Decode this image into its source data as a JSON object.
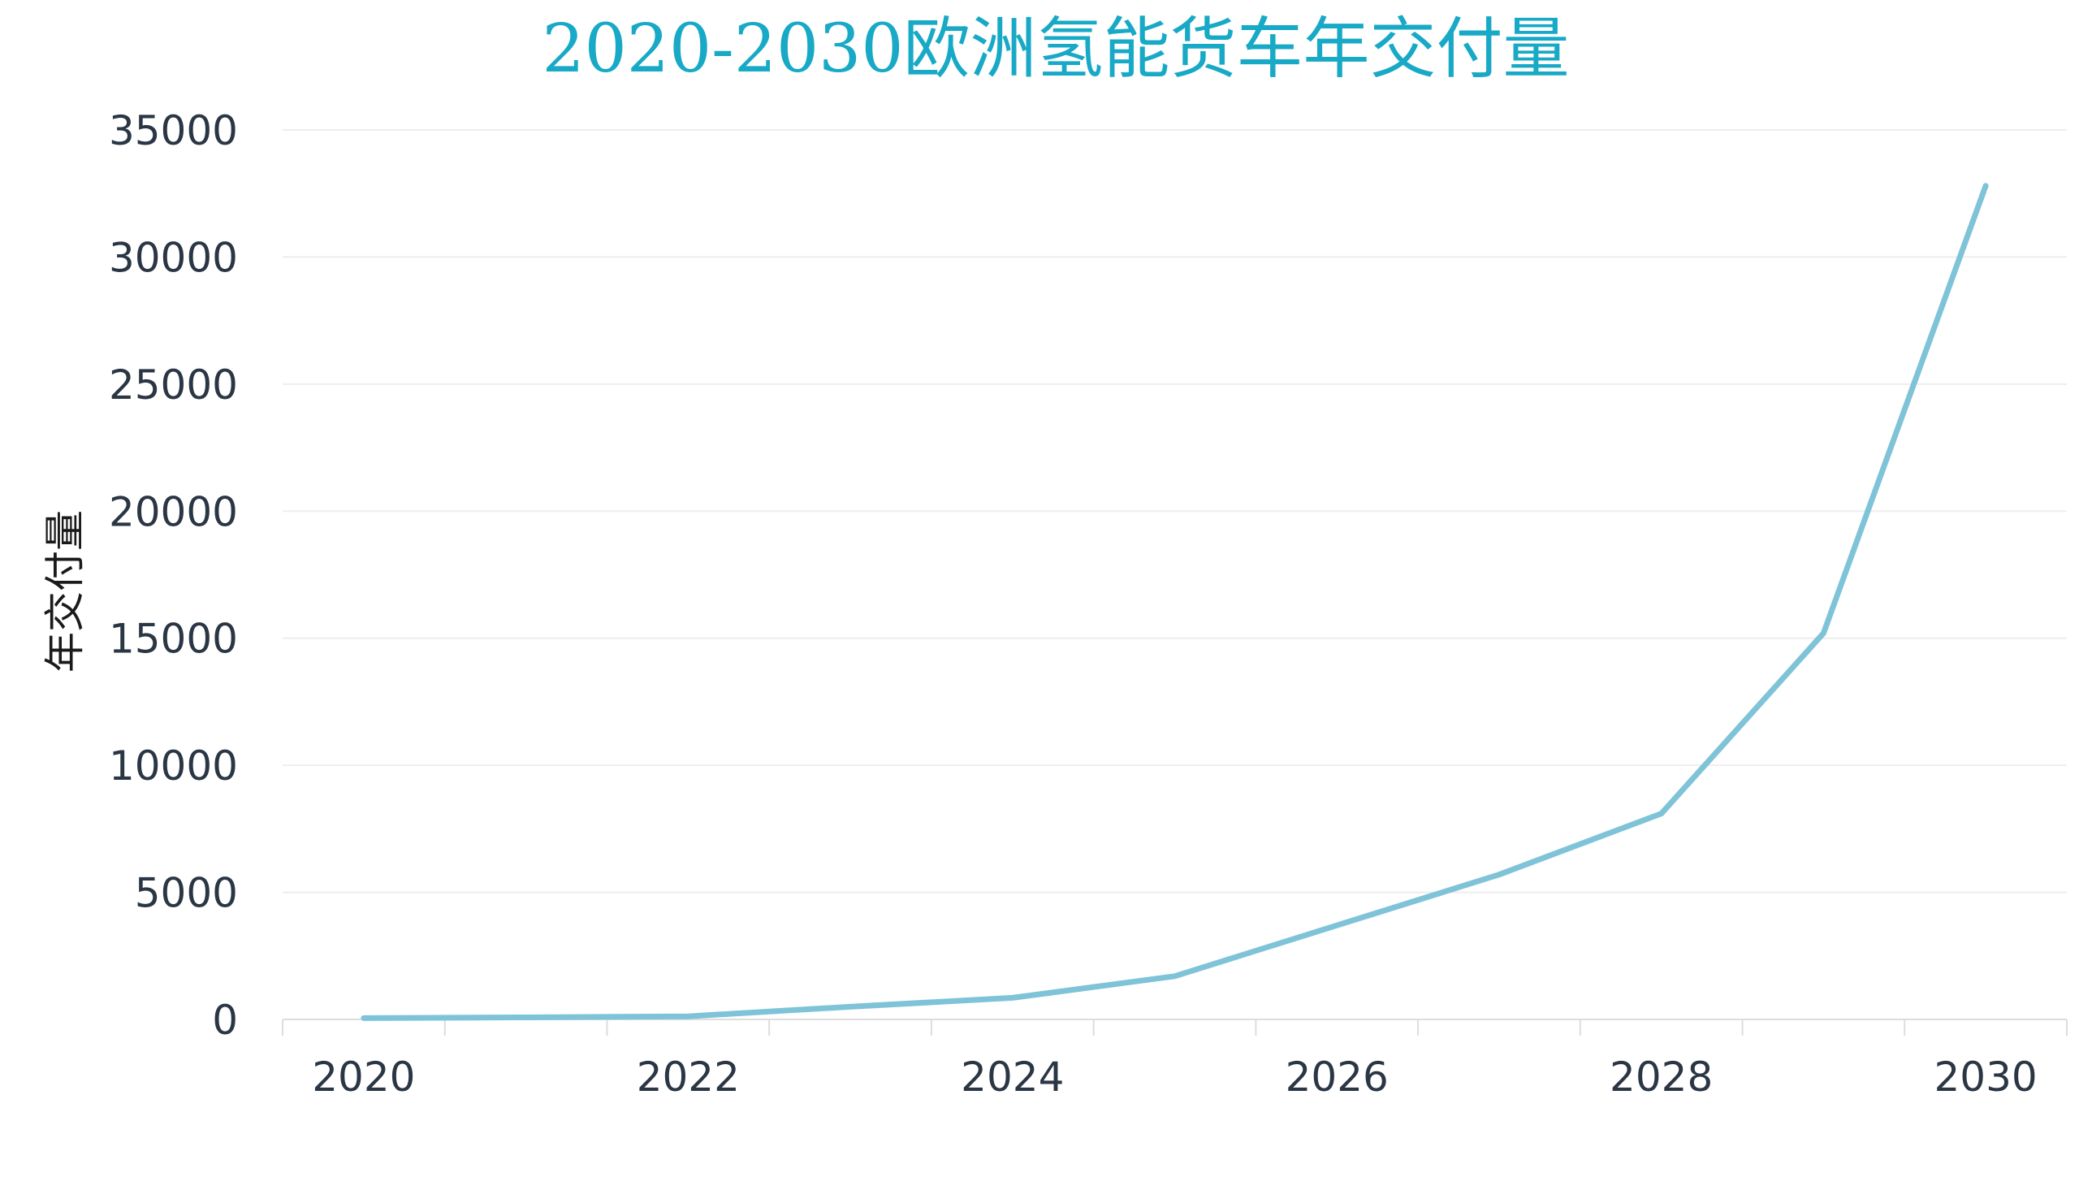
{
  "chart_data": {
    "type": "line",
    "title": "2020-2030欧洲氢能货车年交付量",
    "xlabel": "",
    "ylabel": "年交付量",
    "x": [
      2020,
      2021,
      2022,
      2023,
      2024,
      2025,
      2026,
      2027,
      2028,
      2029,
      2030
    ],
    "x_ticks": [
      2020,
      2022,
      2024,
      2026,
      2028,
      2030
    ],
    "x_tick_labels": [
      "2020",
      "2022",
      "2024",
      "2026",
      "2028",
      "2030"
    ],
    "xlim": [
      2019.5,
      2030.5
    ],
    "y_ticks": [
      0,
      5000,
      10000,
      15000,
      20000,
      25000,
      30000,
      35000
    ],
    "y_tick_labels": [
      "0",
      "5000",
      "10000",
      "15000",
      "20000",
      "25000",
      "30000",
      "35000"
    ],
    "ylim": [
      0,
      35000
    ],
    "grid": true,
    "legend": "none",
    "series": [
      {
        "values": [
          50,
          80,
          120,
          500,
          850,
          1700,
          3700,
          5700,
          8100,
          15200,
          32800
        ]
      }
    ]
  },
  "colors": {
    "title": "#17a9c6",
    "series": "#7fc3d8",
    "tick_text": "#2b3645",
    "grid": "#eeeeee",
    "axis": "#dddddd"
  }
}
